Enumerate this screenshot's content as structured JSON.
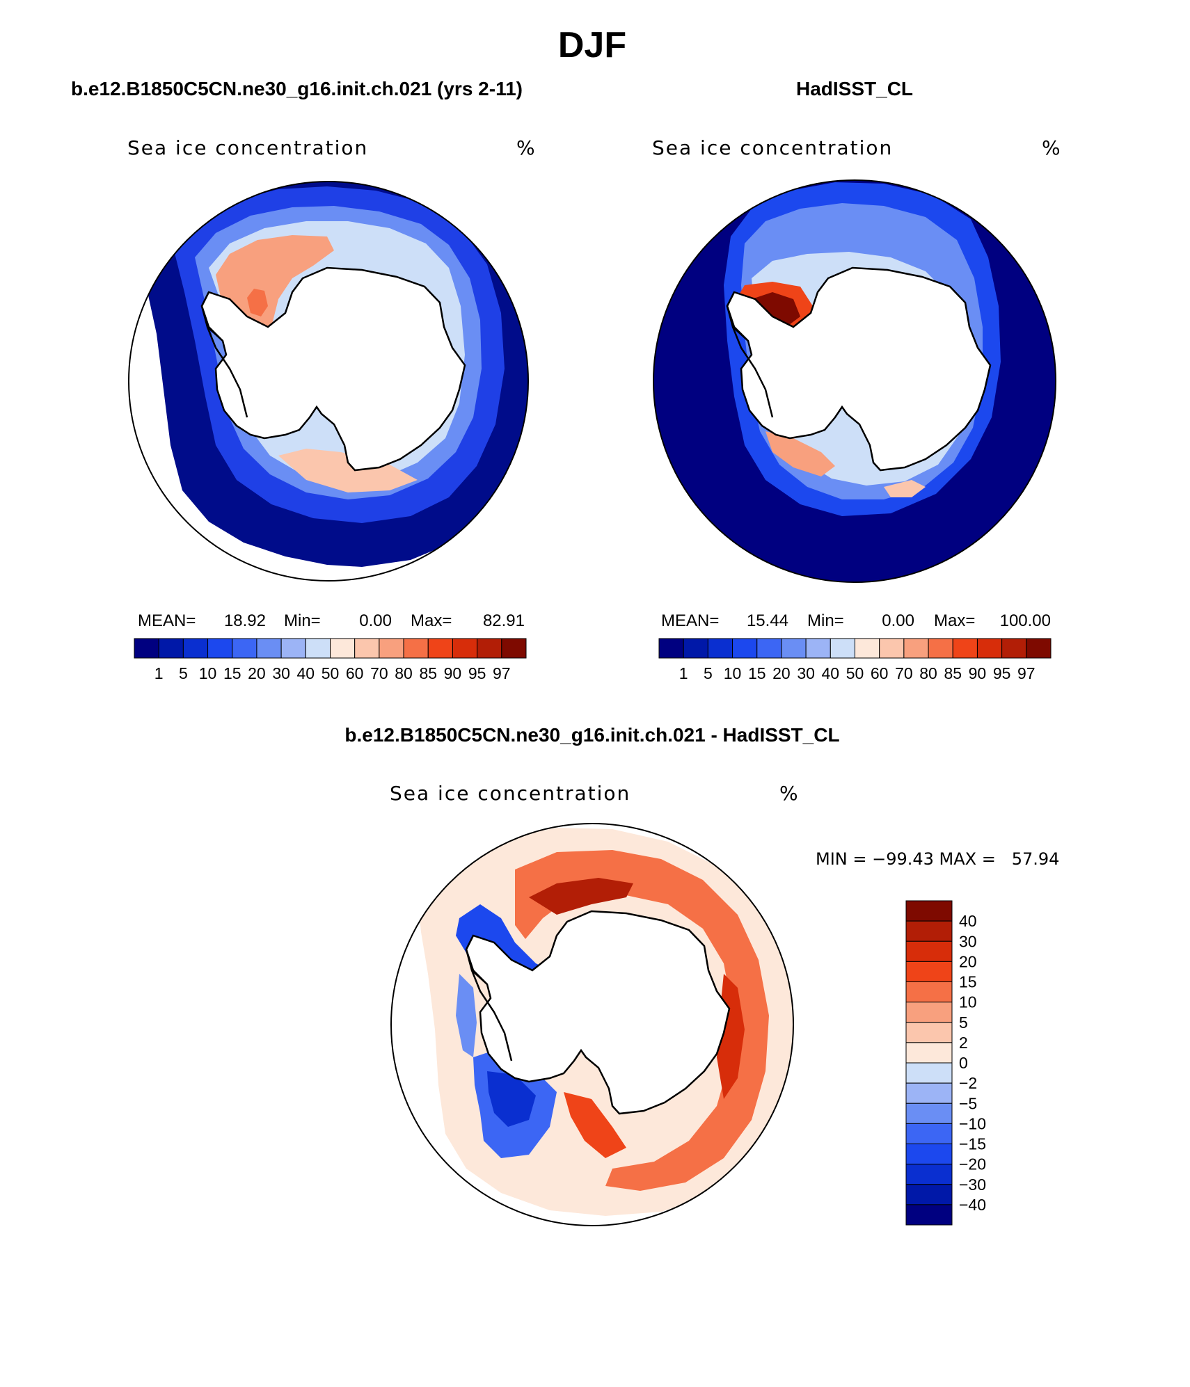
{
  "season": "DJF",
  "titles": {
    "model": "b.e12.B1850C5CN.ne30_g16.init.ch.021 (yrs 2-11)",
    "obs": "HadISST_CL",
    "diff": "b.e12.B1850C5CN.ne30_g16.init.ch.021 - HadISST_CL"
  },
  "variable": "Sea ice concentration",
  "units": "%",
  "stats_model": {
    "mean_label": "MEAN=",
    "mean": "18.92",
    "min_label": "Min=",
    "min": "0.00",
    "max_label": "Max=",
    "max": "82.91"
  },
  "stats_obs": {
    "mean_label": "MEAN=",
    "mean": "15.44",
    "min_label": "Min=",
    "min": "0.00",
    "max_label": "Max=",
    "max": "100.00"
  },
  "stats_diff": {
    "text": "MIN = −99.43 MAX =   57.94"
  },
  "colors": {
    "abs": [
      "#000080",
      "#0018a8",
      "#0a2fd0",
      "#1c48ee",
      "#3c66f4",
      "#6a8ef4",
      "#9cb4f6",
      "#cddff8",
      "#fde8da",
      "#fbc6ad",
      "#f8a07e",
      "#f57046",
      "#ef4418",
      "#d72d0a",
      "#b21e06",
      "#7e0a00"
    ],
    "diff": [
      "#7e0a00",
      "#b21e06",
      "#d72d0a",
      "#ef4418",
      "#f57046",
      "#f8a07e",
      "#fbc6ad",
      "#fde8da",
      "#cddff8",
      "#9cb4f6",
      "#6a8ef4",
      "#3c66f4",
      "#1c48ee",
      "#0a2fd0",
      "#0018a8",
      "#000080"
    ]
  },
  "chart_data": [
    {
      "type": "heatmap",
      "title": "b.e12.B1850C5CN.ne30_g16.init.ch.021 (yrs 2-11)",
      "subtitle": "Sea ice concentration",
      "units": "%",
      "projection": "south polar stereographic",
      "levels": [
        1,
        5,
        10,
        15,
        20,
        30,
        40,
        50,
        60,
        70,
        80,
        85,
        90,
        95,
        97
      ],
      "level_labels": [
        "1",
        "5",
        "10",
        "15",
        "20",
        "30",
        "40",
        "50",
        "60",
        "70",
        "80",
        "85",
        "90",
        "95",
        "97"
      ],
      "mean": 18.92,
      "min": 0.0,
      "max": 82.91
    },
    {
      "type": "heatmap",
      "title": "HadISST_CL",
      "subtitle": "Sea ice concentration",
      "units": "%",
      "projection": "south polar stereographic",
      "levels": [
        1,
        5,
        10,
        15,
        20,
        30,
        40,
        50,
        60,
        70,
        80,
        85,
        90,
        95,
        97
      ],
      "level_labels": [
        "1",
        "5",
        "10",
        "15",
        "20",
        "30",
        "40",
        "50",
        "60",
        "70",
        "80",
        "85",
        "90",
        "95",
        "97"
      ],
      "mean": 15.44,
      "min": 0.0,
      "max": 100.0
    },
    {
      "type": "heatmap",
      "title": "b.e12.B1850C5CN.ne30_g16.init.ch.021 - HadISST_CL",
      "subtitle": "Sea ice concentration",
      "units": "%",
      "projection": "south polar stereographic",
      "levels": [
        40,
        30,
        20,
        15,
        10,
        5,
        2,
        0,
        -2,
        -5,
        -10,
        -15,
        -20,
        -30,
        -40
      ],
      "level_labels": [
        "40",
        "30",
        "20",
        "15",
        "10",
        "5",
        "2",
        "0",
        "−2",
        "−5",
        "−10",
        "−15",
        "−20",
        "−30",
        "−40"
      ],
      "min": -99.43,
      "max": 57.94
    }
  ]
}
